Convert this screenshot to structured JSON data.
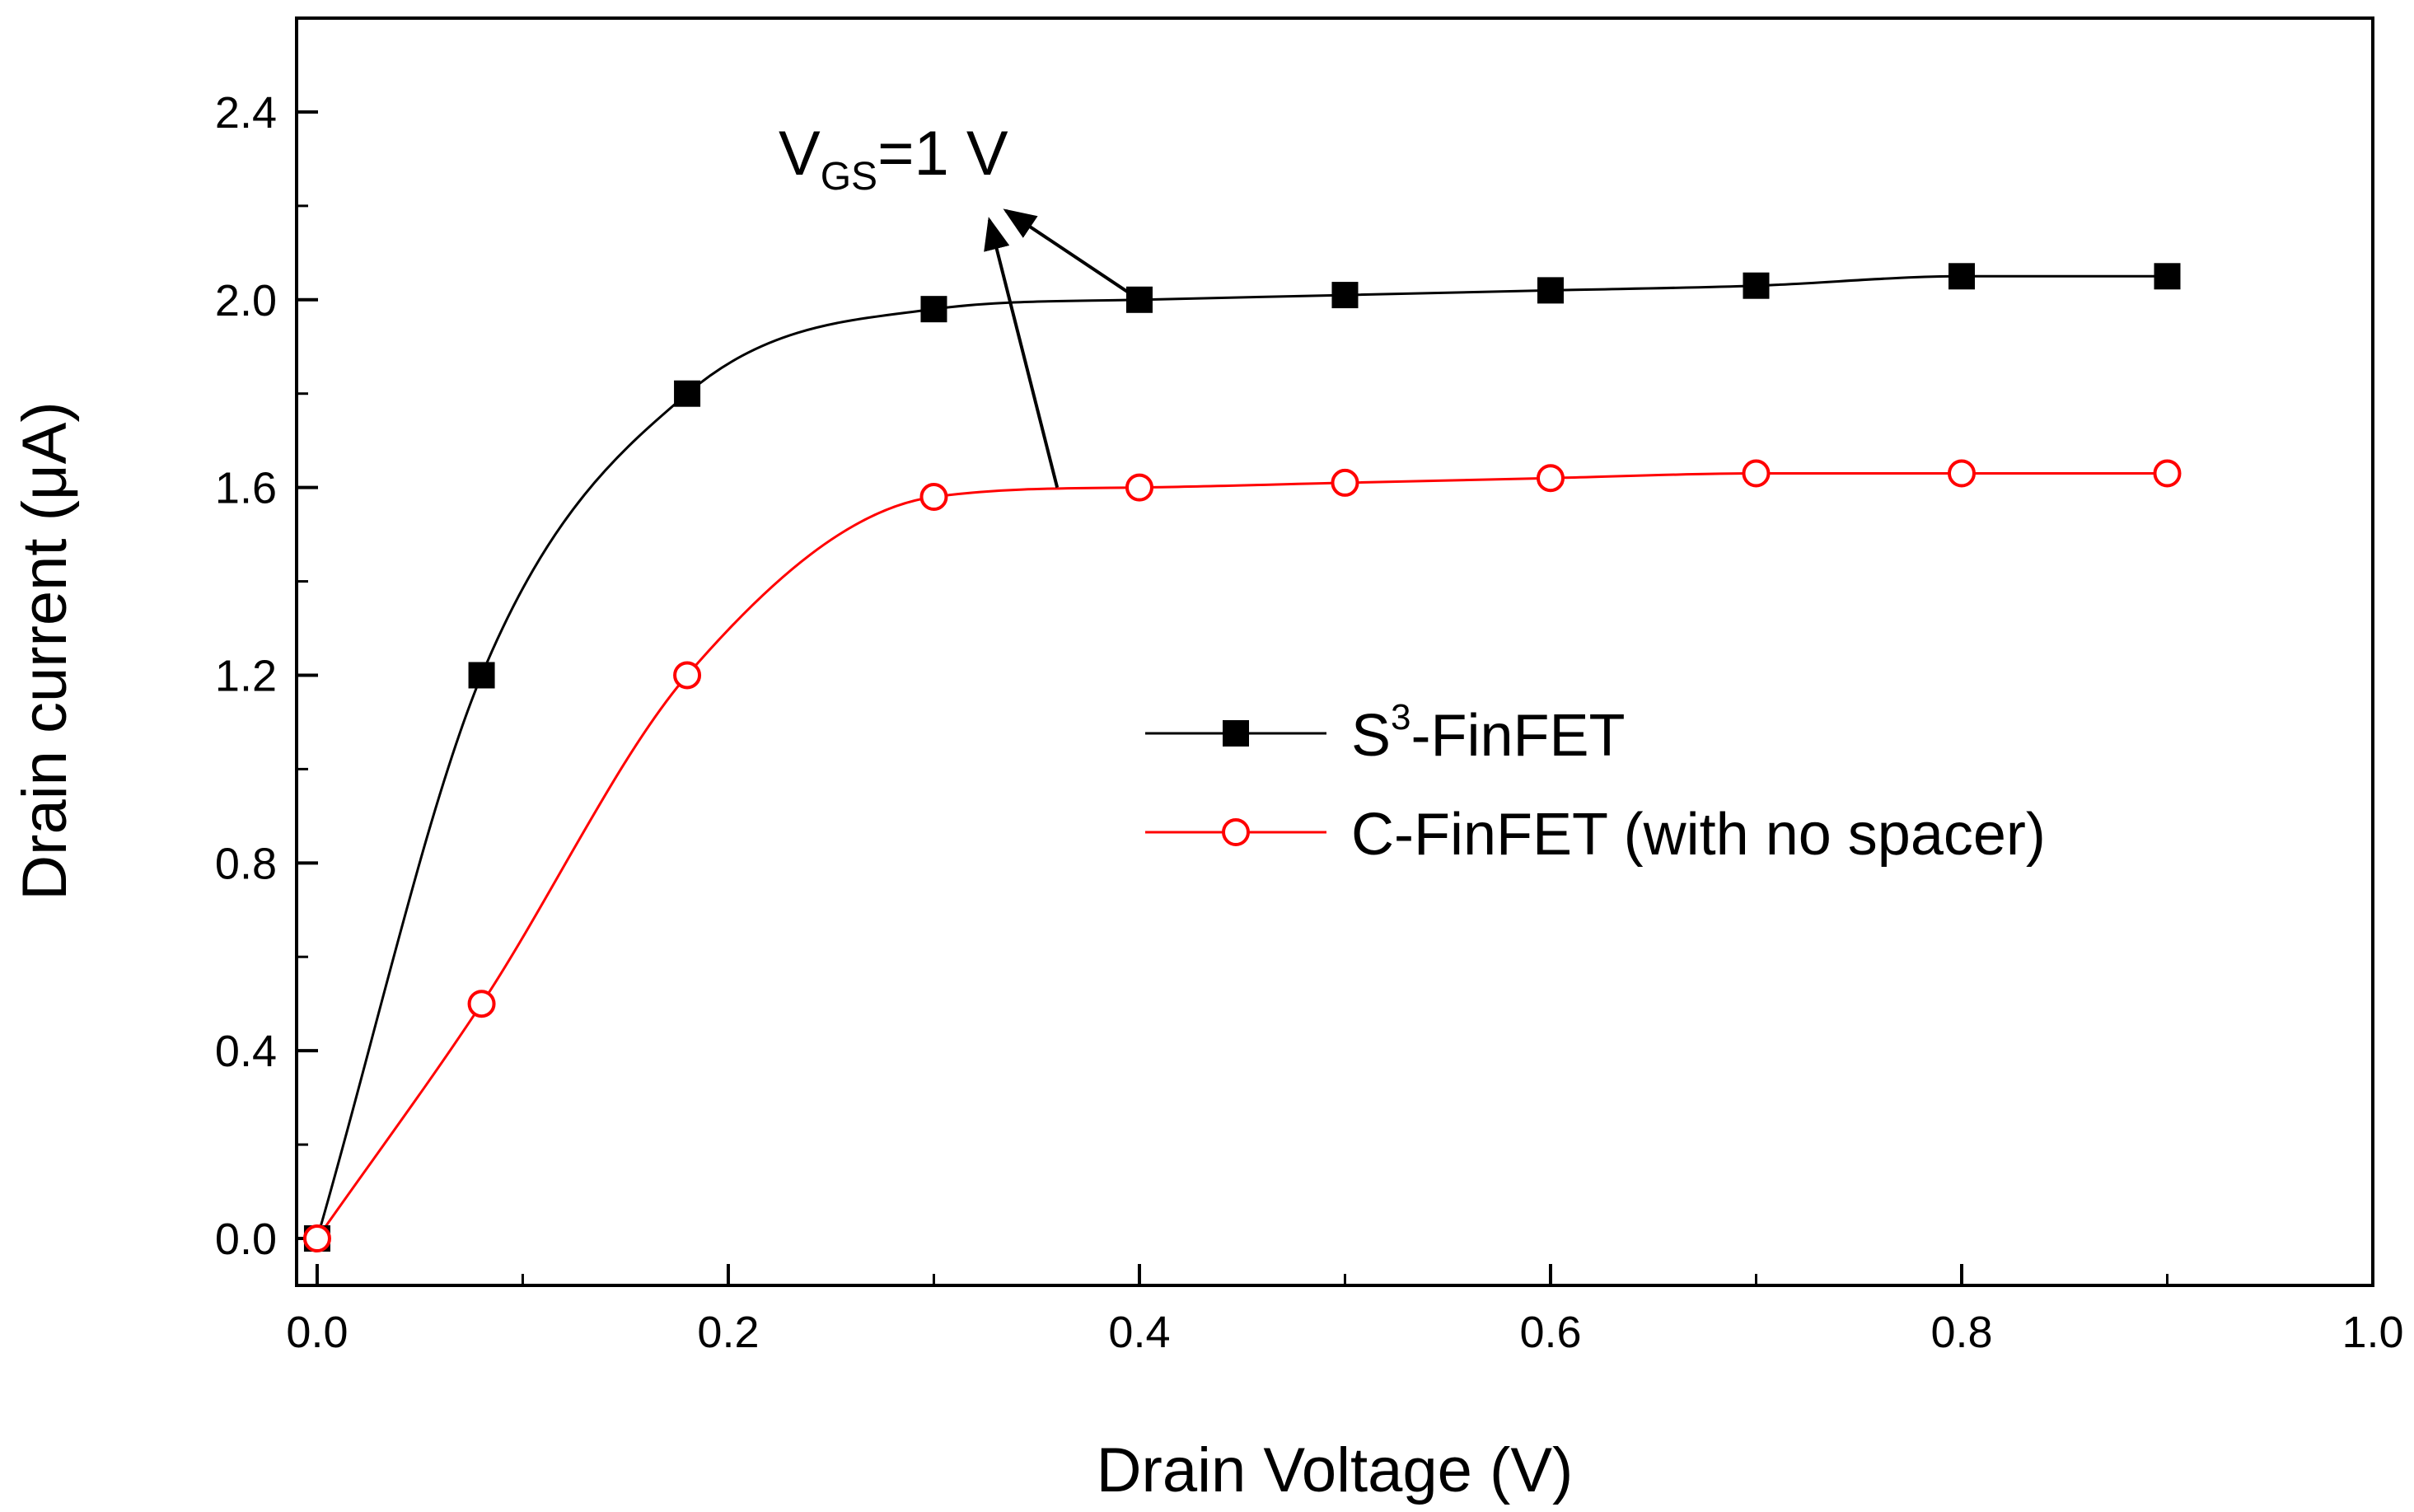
{
  "chart_data": {
    "type": "line",
    "title": "",
    "xlabel": "Drain Voltage (V)",
    "ylabel": "Drain current (μA)",
    "xlim": [
      -0.01,
      1.0
    ],
    "ylim": [
      -0.1,
      2.6
    ],
    "xticks": [
      0.0,
      0.2,
      0.4,
      0.6,
      0.8,
      1.0
    ],
    "xtick_labels": [
      "0.0",
      "0.2",
      "0.4",
      "0.6",
      "0.8",
      "1.0"
    ],
    "yticks": [
      0.0,
      0.4,
      0.8,
      1.2,
      1.6,
      2.0,
      2.4
    ],
    "ytick_labels": [
      "0.0",
      "0.4",
      "0.8",
      "1.2",
      "1.6",
      "2.0",
      "2.4"
    ],
    "grid": false,
    "legend_position": "center-right",
    "series": [
      {
        "name": "S3-FinFET",
        "legend_base": "S",
        "legend_sup": "3",
        "legend_rest": "-FinFET",
        "color": "#000000",
        "marker": "filled-square",
        "x": [
          0.0,
          0.08,
          0.18,
          0.3,
          0.4,
          0.5,
          0.6,
          0.7,
          0.8,
          0.9
        ],
        "y": [
          0.0,
          1.2,
          1.8,
          1.98,
          2.0,
          2.01,
          2.02,
          2.03,
          2.05,
          2.05
        ]
      },
      {
        "name": "C-FinFET (with no spacer)",
        "legend_base": "C-FinFET (with no spacer)",
        "legend_sup": "",
        "legend_rest": "",
        "color": "#ff0000",
        "marker": "open-circle",
        "x": [
          0.0,
          0.08,
          0.18,
          0.3,
          0.4,
          0.5,
          0.6,
          0.7,
          0.8,
          0.9
        ],
        "y": [
          0.0,
          0.5,
          1.2,
          1.58,
          1.6,
          1.61,
          1.62,
          1.63,
          1.63,
          1.63
        ]
      }
    ],
    "annotations": [
      {
        "base": "V",
        "subscript": "GS",
        "rest": "=1 V",
        "points_to": [
          {
            "series": "S3-FinFET",
            "x": 0.4,
            "y": 2.0
          },
          {
            "series": "C-FinFET (with no spacer)",
            "x": 0.36,
            "y": 1.6
          }
        ],
        "arrow_heads_at": [
          {
            "x": 0.335,
            "y": 2.19
          },
          {
            "x": 0.327,
            "y": 2.17
          }
        ]
      }
    ]
  }
}
